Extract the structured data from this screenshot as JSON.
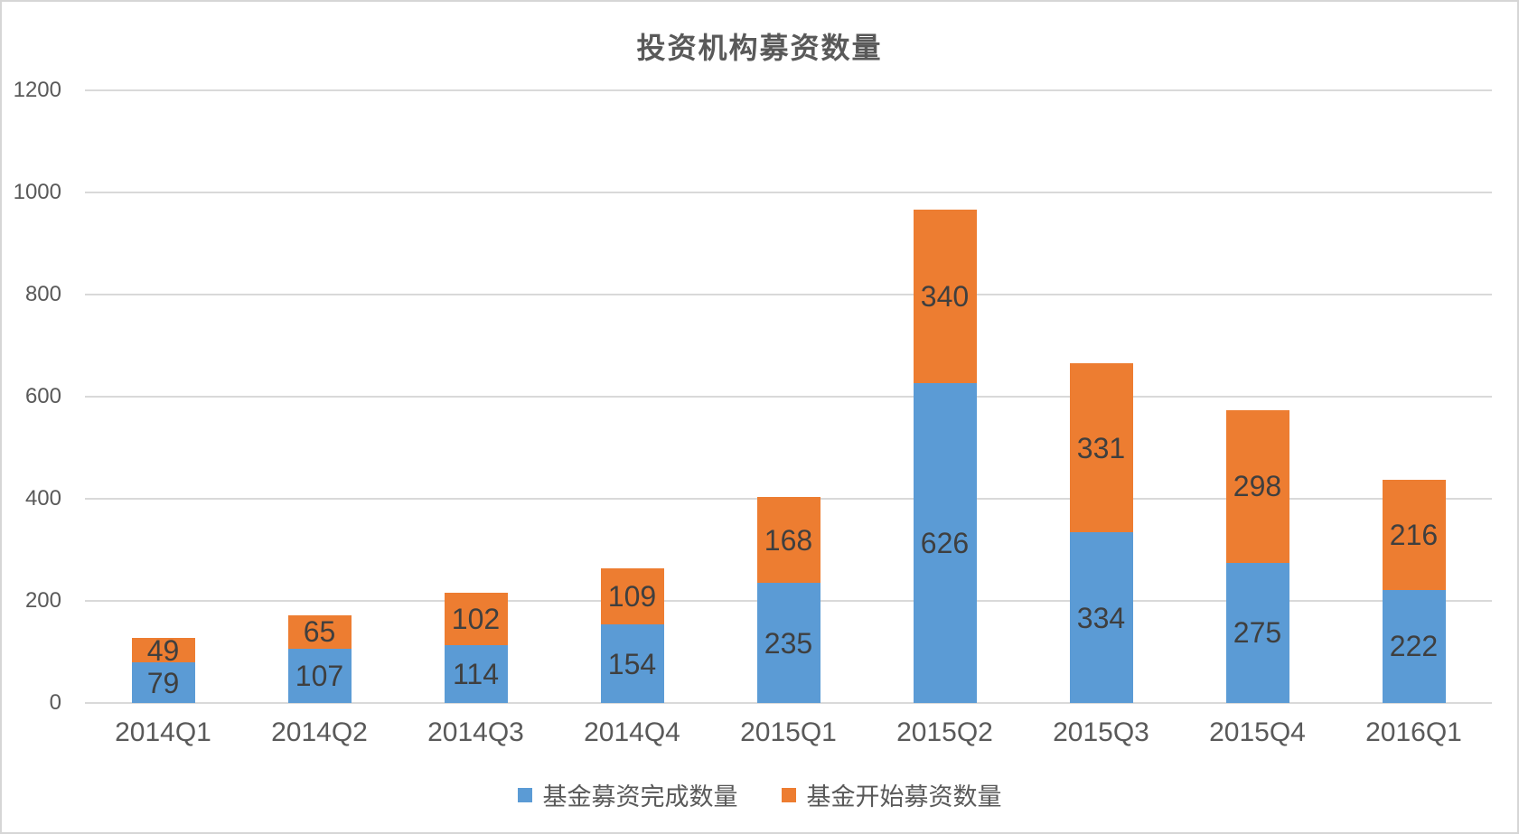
{
  "title": "投资机构募资数量",
  "chart_data": {
    "type": "bar",
    "stacked": true,
    "title": "投资机构募资数量",
    "categories": [
      "2014Q1",
      "2014Q2",
      "2014Q3",
      "2014Q4",
      "2015Q1",
      "2015Q2",
      "2015Q3",
      "2015Q4",
      "2016Q1"
    ],
    "series": [
      {
        "name": "基金募资完成数量",
        "color": "#5b9bd5",
        "values": [
          79,
          107,
          114,
          154,
          235,
          626,
          334,
          275,
          222
        ]
      },
      {
        "name": "基金开始募资数量",
        "color": "#ed7d31",
        "values": [
          49,
          65,
          102,
          109,
          168,
          340,
          331,
          298,
          216
        ]
      }
    ],
    "xlabel": "",
    "ylabel": "",
    "ylim": [
      0,
      1200
    ],
    "yticks": [
      0,
      200,
      400,
      600,
      800,
      1000,
      1200
    ],
    "grid": true,
    "legend_position": "bottom"
  },
  "colors": {
    "series_blue": "#5b9bd5",
    "series_orange": "#ed7d31",
    "gridline": "#d9d9d9",
    "text": "#595959",
    "data_label": "#3f3f3f",
    "frame_border": "#d6d6d6"
  }
}
